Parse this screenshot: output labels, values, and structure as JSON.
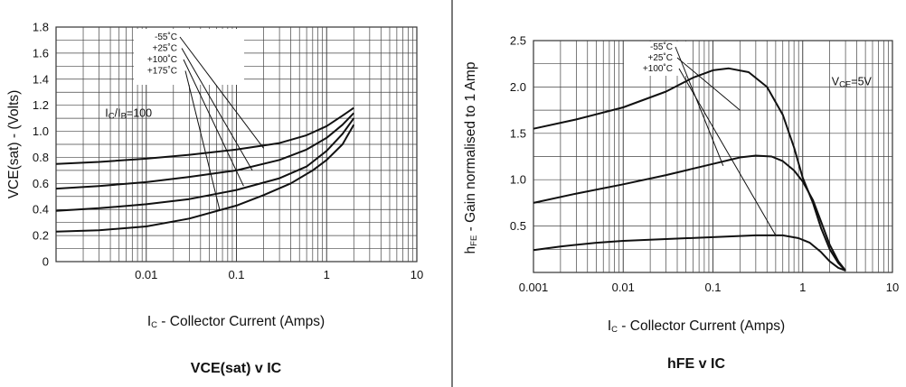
{
  "chart_data": [
    {
      "type": "line",
      "title": "VCE(sat) v IC",
      "xlabel_main": "I",
      "xlabel_sub": "C",
      "xlabel_rest": " - Collector Current (Amps)",
      "ylabel": "VCE(sat) - (Volts)",
      "xscale": "log",
      "xlim": [
        0.001,
        10
      ],
      "ylim": [
        0,
        1.8
      ],
      "x_ticks": [
        {
          "value": 0.01,
          "label": "0.01"
        },
        {
          "value": 0.1,
          "label": "0.1"
        },
        {
          "value": 1,
          "label": "1"
        },
        {
          "value": 10,
          "label": "10"
        }
      ],
      "y_ticks": [
        {
          "value": 0,
          "label": "0"
        },
        {
          "value": 0.2,
          "label": "0.2"
        },
        {
          "value": 0.4,
          "label": "0.4"
        },
        {
          "value": 0.6,
          "label": "0.6"
        },
        {
          "value": 0.8,
          "label": "0.8"
        },
        {
          "value": 1.0,
          "label": "1.0"
        },
        {
          "value": 1.2,
          "label": "1.2"
        },
        {
          "value": 1.4,
          "label": "1.4"
        },
        {
          "value": 1.6,
          "label": "1.6"
        },
        {
          "value": 1.8,
          "label": "1.8"
        }
      ],
      "grid": true,
      "annotation": {
        "main": "I",
        "s1": "C",
        "mid": "/I",
        "s2": "B",
        "rest": "=100",
        "x": 0.0035,
        "y": 1.11
      },
      "legend": {
        "position": "top-left",
        "entries": [
          "-55˚C",
          "+25˚C",
          "+100˚C",
          "+175˚C"
        ],
        "leader_targets": [
          {
            "x": 0.2,
            "y": 0.87
          },
          {
            "x": 0.15,
            "y": 0.7
          },
          {
            "x": 0.12,
            "y": 0.58
          },
          {
            "x": 0.065,
            "y": 0.4
          }
        ]
      },
      "series": [
        {
          "x": [
            0.001,
            0.003,
            0.01,
            0.03,
            0.1,
            0.3,
            0.6,
            1,
            1.5,
            2
          ],
          "y": [
            0.75,
            0.765,
            0.79,
            0.82,
            0.86,
            0.91,
            0.97,
            1.04,
            1.12,
            1.18
          ]
        },
        {
          "x": [
            0.001,
            0.003,
            0.01,
            0.03,
            0.1,
            0.3,
            0.6,
            1,
            1.5,
            2
          ],
          "y": [
            0.56,
            0.58,
            0.61,
            0.65,
            0.7,
            0.78,
            0.86,
            0.95,
            1.05,
            1.14
          ]
        },
        {
          "x": [
            0.001,
            0.003,
            0.01,
            0.03,
            0.1,
            0.3,
            0.6,
            1,
            1.5,
            2
          ],
          "y": [
            0.39,
            0.41,
            0.44,
            0.48,
            0.55,
            0.64,
            0.73,
            0.85,
            0.98,
            1.1
          ]
        },
        {
          "x": [
            0.001,
            0.003,
            0.01,
            0.03,
            0.1,
            0.2,
            0.4,
            0.7,
            1,
            1.5,
            2
          ],
          "y": [
            0.23,
            0.24,
            0.27,
            0.33,
            0.43,
            0.51,
            0.6,
            0.7,
            0.78,
            0.9,
            1.05
          ]
        }
      ]
    },
    {
      "type": "line",
      "title": "hFE v IC",
      "xlabel_main": "I",
      "xlabel_sub": "C",
      "xlabel_rest": " - Collector Current (Amps)",
      "ylabel_main": "h",
      "ylabel_sub": "FE",
      "ylabel_rest": " - Gain normalised to 1 Amp",
      "xscale": "log",
      "xlim": [
        0.001,
        10
      ],
      "ylim": [
        0,
        2.5
      ],
      "x_ticks": [
        {
          "value": 0.001,
          "label": "0.001"
        },
        {
          "value": 0.01,
          "label": "0.01"
        },
        {
          "value": 0.1,
          "label": "0.1"
        },
        {
          "value": 1,
          "label": "1"
        },
        {
          "value": 10,
          "label": "10"
        }
      ],
      "y_ticks": [
        {
          "value": 0.5,
          "label": "0.5"
        },
        {
          "value": 1.0,
          "label": "1.0"
        },
        {
          "value": 1.5,
          "label": "1.5"
        },
        {
          "value": 2.0,
          "label": "2.0"
        },
        {
          "value": 2.5,
          "label": "2.5"
        }
      ],
      "grid": true,
      "annotation": {
        "main": "V",
        "s1": "CE",
        "rest": "=5V",
        "x": 2.1,
        "y": 2.02
      },
      "legend": {
        "position": "top-left",
        "entries": [
          "-55˚C",
          "+25˚C",
          "+100˚C"
        ],
        "leader_targets": [
          {
            "x": 0.13,
            "y": 1.15
          },
          {
            "x": 0.2,
            "y": 1.75
          },
          {
            "x": 0.5,
            "y": 0.4
          }
        ]
      },
      "series": [
        {
          "x": [
            0.001,
            0.003,
            0.01,
            0.03,
            0.06,
            0.1,
            0.15,
            0.25,
            0.4,
            0.6,
            0.8,
            1,
            1.3,
            1.6,
            2,
            2.5,
            3
          ],
          "y": [
            1.55,
            1.65,
            1.78,
            1.95,
            2.1,
            2.18,
            2.2,
            2.16,
            2.0,
            1.7,
            1.35,
            1.02,
            0.75,
            0.48,
            0.25,
            0.1,
            0.02
          ]
        },
        {
          "x": [
            0.001,
            0.003,
            0.01,
            0.03,
            0.1,
            0.2,
            0.3,
            0.45,
            0.6,
            0.8,
            1,
            1.3,
            1.6,
            2,
            2.5,
            3
          ],
          "y": [
            0.75,
            0.85,
            0.95,
            1.05,
            1.17,
            1.24,
            1.26,
            1.25,
            1.2,
            1.1,
            0.98,
            0.78,
            0.55,
            0.3,
            0.12,
            0.02
          ]
        },
        {
          "x": [
            0.001,
            0.002,
            0.005,
            0.01,
            0.03,
            0.1,
            0.3,
            0.6,
            0.9,
            1.2,
            1.6,
            2,
            2.5,
            3
          ],
          "y": [
            0.24,
            0.28,
            0.32,
            0.34,
            0.36,
            0.38,
            0.4,
            0.4,
            0.37,
            0.32,
            0.22,
            0.12,
            0.05,
            0.02
          ]
        }
      ]
    }
  ]
}
